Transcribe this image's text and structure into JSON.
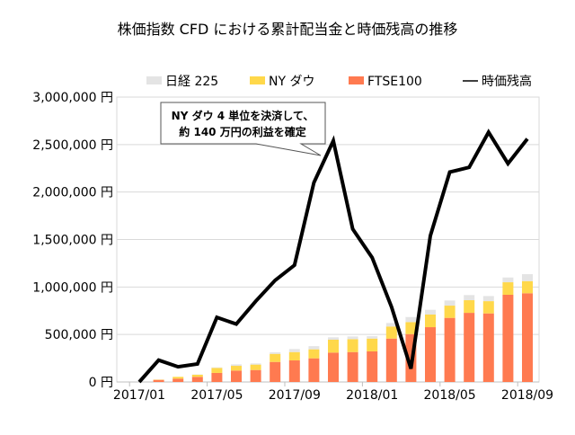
{
  "chart_data": {
    "type": "bar",
    "title": "株価指数 CFD における累計配当金と時価残高の推移",
    "categories": [
      "2017/01",
      "2017/02",
      "2017/03",
      "2017/04",
      "2017/05",
      "2017/06",
      "2017/07",
      "2017/08",
      "2017/09",
      "2017/10",
      "2017/11",
      "2017/12",
      "2018/01",
      "2018/02",
      "2018/03",
      "2018/04",
      "2018/05",
      "2018/06",
      "2018/07",
      "2018/08",
      "2018/09"
    ],
    "x_tick_labels": [
      "2017/01",
      "2017/05",
      "2017/09",
      "2018/01",
      "2018/05",
      "2018/09"
    ],
    "y_tick_labels": [
      "0 円",
      "500,000 円",
      "1,000,000 円",
      "1,500,000 円",
      "2,000,000 円",
      "2,500,000 円",
      "3,000,000 円"
    ],
    "ylim": [
      0,
      3000000
    ],
    "grid": true,
    "legend_position": "top",
    "stacked": true,
    "series": [
      {
        "name": "FTSE100",
        "kind": "bar",
        "color": "#ff7a50",
        "values": [
          0,
          22000,
          35000,
          54000,
          95000,
          120000,
          126000,
          211000,
          227000,
          249000,
          309000,
          315000,
          322000,
          457000,
          504000,
          577000,
          675000,
          728000,
          722000,
          918000,
          934000
        ]
      },
      {
        "name": "NY ダウ",
        "kind": "bar",
        "color": "#ffd84a",
        "values": [
          0,
          3000,
          19000,
          22000,
          53000,
          50000,
          57000,
          85000,
          88000,
          95000,
          136000,
          136000,
          135000,
          127000,
          127000,
          133000,
          129000,
          133000,
          129000,
          132000,
          128000
        ]
      },
      {
        "name": "日経 225",
        "kind": "bar",
        "color": "#e4e4e4",
        "values": [
          0,
          0,
          0,
          3000,
          6000,
          16000,
          12000,
          16000,
          32000,
          33000,
          25000,
          28000,
          25000,
          37000,
          53000,
          50000,
          54000,
          54000,
          54000,
          50000,
          73000
        ]
      },
      {
        "name": "時価残高",
        "kind": "line",
        "color": "#000000",
        "values": [
          0,
          230000,
          160000,
          190000,
          680000,
          610000,
          850000,
          1070000,
          1230000,
          2100000,
          2540000,
          1610000,
          1310000,
          790000,
          140000,
          1540000,
          2210000,
          2260000,
          2630000,
          2300000,
          2560000
        ]
      }
    ],
    "legend": [
      "日経 225",
      "NY ダウ",
      "FTSE100",
      "時価残高"
    ],
    "annotation": [
      "NY ダウ 4 単位を決済して、",
      "約 140 万円の利益を確定"
    ]
  }
}
